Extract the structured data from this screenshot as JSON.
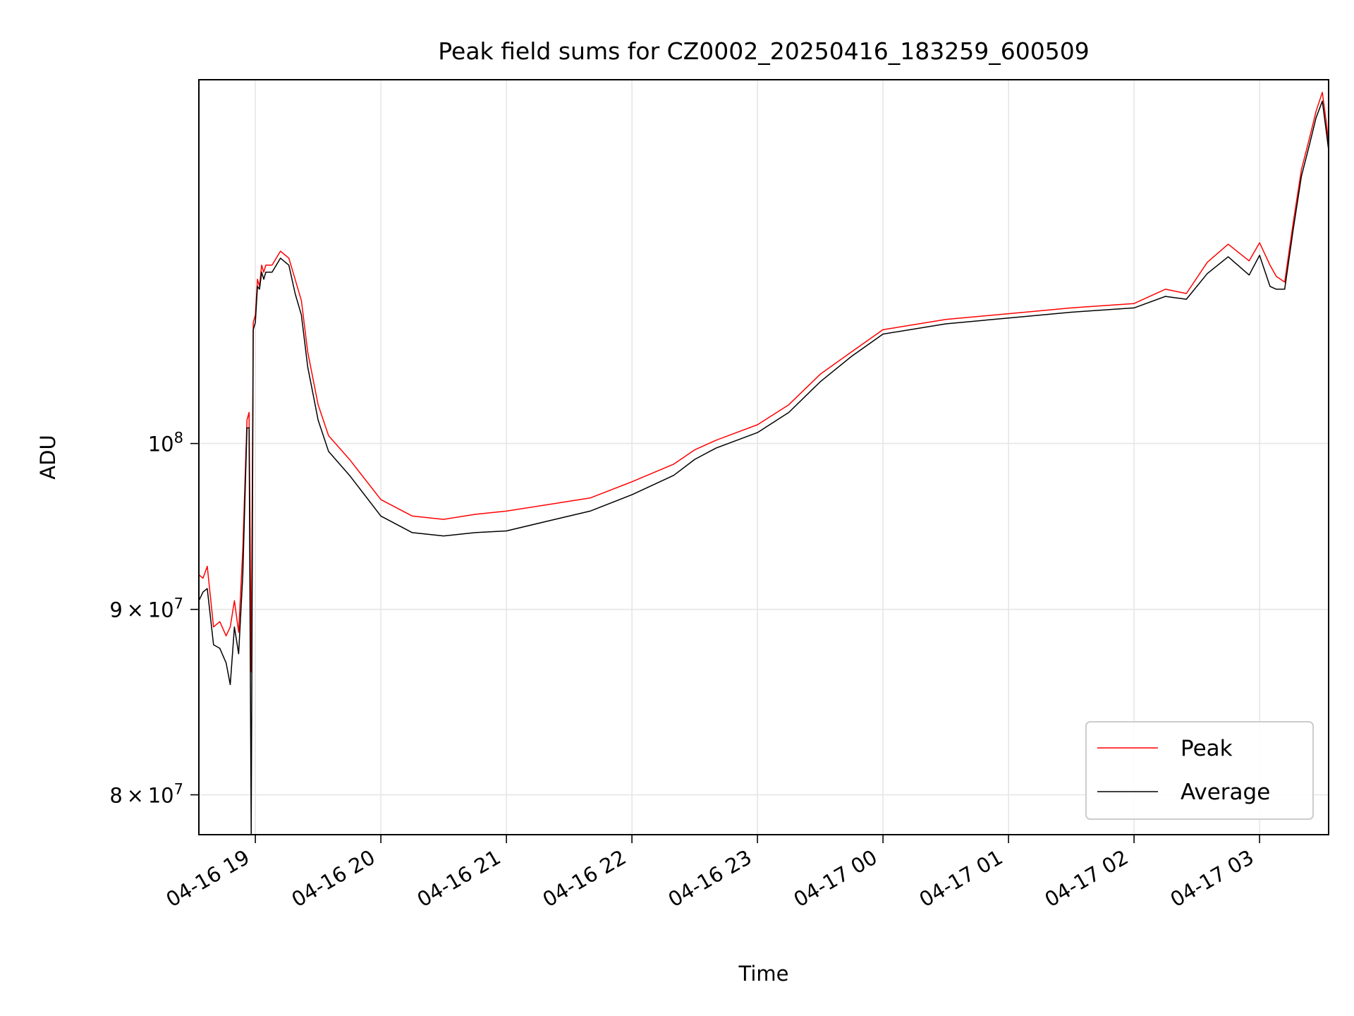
{
  "chart_data": {
    "type": "line",
    "title": "Peak field sums for CZ0002_20250416_183259_600509",
    "xlabel": "Time",
    "ylabel": "ADU",
    "x_is_time": true,
    "xlim": [
      "2025-04-16 18:33",
      "2025-04-17 03:33"
    ],
    "ylim": [
      78000000,
      126000000
    ],
    "yscale": "log",
    "grid": true,
    "legend_position": "lower-right",
    "x_ticks": [
      {
        "t": "2025-04-16 19:00",
        "label": "04-16 19"
      },
      {
        "t": "2025-04-16 20:00",
        "label": "04-16 20"
      },
      {
        "t": "2025-04-16 21:00",
        "label": "04-16 21"
      },
      {
        "t": "2025-04-16 22:00",
        "label": "04-16 22"
      },
      {
        "t": "2025-04-16 23:00",
        "label": "04-16 23"
      },
      {
        "t": "2025-04-17 00:00",
        "label": "04-17 00"
      },
      {
        "t": "2025-04-17 01:00",
        "label": "04-17 01"
      },
      {
        "t": "2025-04-17 02:00",
        "label": "04-17 02"
      },
      {
        "t": "2025-04-17 03:00",
        "label": "04-17 03"
      }
    ],
    "y_ticks": [
      {
        "value": 80000000,
        "base": "8",
        "mult": "×",
        "exp_base": "10",
        "exp": "7"
      },
      {
        "value": 90000000,
        "base": "9",
        "mult": "×",
        "exp_base": "10",
        "exp": "7"
      },
      {
        "value": 100000000,
        "base": "",
        "mult": "",
        "exp_base": "10",
        "exp": "8"
      }
    ],
    "series": [
      {
        "name": "Peak",
        "color": "#ff0000",
        "x": [
          "2025-04-16 18:33",
          "2025-04-16 18:35",
          "2025-04-16 18:37",
          "2025-04-16 18:40",
          "2025-04-16 18:43",
          "2025-04-16 18:46",
          "2025-04-16 18:48",
          "2025-04-16 18:50",
          "2025-04-16 18:52",
          "2025-04-16 18:54",
          "2025-04-16 18:55",
          "2025-04-16 18:56",
          "2025-04-16 18:57",
          "2025-04-16 18:58",
          "2025-04-16 18:59",
          "2025-04-16 19:00",
          "2025-04-16 19:01",
          "2025-04-16 19:02",
          "2025-04-16 19:03",
          "2025-04-16 19:04",
          "2025-04-16 19:05",
          "2025-04-16 19:08",
          "2025-04-16 19:12",
          "2025-04-16 19:16",
          "2025-04-16 19:19",
          "2025-04-16 19:22",
          "2025-04-16 19:25",
          "2025-04-16 19:30",
          "2025-04-16 19:35",
          "2025-04-16 19:45",
          "2025-04-16 20:00",
          "2025-04-16 20:15",
          "2025-04-16 20:30",
          "2025-04-16 20:45",
          "2025-04-16 21:00",
          "2025-04-16 21:20",
          "2025-04-16 21:40",
          "2025-04-16 22:00",
          "2025-04-16 22:20",
          "2025-04-16 22:30",
          "2025-04-16 22:40",
          "2025-04-16 22:50",
          "2025-04-16 23:00",
          "2025-04-16 23:15",
          "2025-04-16 23:30",
          "2025-04-16 23:45",
          "2025-04-17 00:00",
          "2025-04-17 00:30",
          "2025-04-17 01:00",
          "2025-04-17 01:30",
          "2025-04-17 02:00",
          "2025-04-17 02:15",
          "2025-04-17 02:25",
          "2025-04-17 02:35",
          "2025-04-17 02:45",
          "2025-04-17 02:55",
          "2025-04-17 03:00",
          "2025-04-17 03:05",
          "2025-04-17 03:08",
          "2025-04-17 03:12",
          "2025-04-17 03:16",
          "2025-04-17 03:20",
          "2025-04-17 03:24",
          "2025-04-17 03:27",
          "2025-04-17 03:30",
          "2025-04-17 03:32",
          "2025-04-17 03:33"
        ],
        "values": [
          92000000,
          91800000,
          92500000,
          89000000,
          89300000,
          88500000,
          89000000,
          90500000,
          88700000,
          93500000,
          97500000,
          101500000,
          102000000,
          86500000,
          108000000,
          108500000,
          111000000,
          110500000,
          112000000,
          111500000,
          112000000,
          112000000,
          113000000,
          112500000,
          111000000,
          109500000,
          106000000,
          102500000,
          100500000,
          99000000,
          96500000,
          95500000,
          95300000,
          95600000,
          95800000,
          96200000,
          96600000,
          97600000,
          98700000,
          99600000,
          100200000,
          100700000,
          101200000,
          102500000,
          104500000,
          106000000,
          107500000,
          108200000,
          108600000,
          109000000,
          109300000,
          110300000,
          110000000,
          112200000,
          113500000,
          112300000,
          113600000,
          112000000,
          111200000,
          110800000,
          115000000,
          119000000,
          121500000,
          123500000,
          125000000,
          122500000,
          121000000
        ]
      },
      {
        "name": "Average",
        "color": "#000000",
        "x": [
          "2025-04-16 18:33",
          "2025-04-16 18:35",
          "2025-04-16 18:37",
          "2025-04-16 18:40",
          "2025-04-16 18:43",
          "2025-04-16 18:46",
          "2025-04-16 18:48",
          "2025-04-16 18:50",
          "2025-04-16 18:52",
          "2025-04-16 18:54",
          "2025-04-16 18:55",
          "2025-04-16 18:56",
          "2025-04-16 18:57",
          "2025-04-16 18:58",
          "2025-04-16 18:59",
          "2025-04-16 19:00",
          "2025-04-16 19:01",
          "2025-04-16 19:02",
          "2025-04-16 19:03",
          "2025-04-16 19:04",
          "2025-04-16 19:05",
          "2025-04-16 19:08",
          "2025-04-16 19:12",
          "2025-04-16 19:16",
          "2025-04-16 19:19",
          "2025-04-16 19:22",
          "2025-04-16 19:25",
          "2025-04-16 19:30",
          "2025-04-16 19:35",
          "2025-04-16 19:45",
          "2025-04-16 20:00",
          "2025-04-16 20:15",
          "2025-04-16 20:30",
          "2025-04-16 20:45",
          "2025-04-16 21:00",
          "2025-04-16 21:20",
          "2025-04-16 21:40",
          "2025-04-16 22:00",
          "2025-04-16 22:20",
          "2025-04-16 22:30",
          "2025-04-16 22:40",
          "2025-04-16 22:50",
          "2025-04-16 23:00",
          "2025-04-16 23:15",
          "2025-04-16 23:30",
          "2025-04-16 23:45",
          "2025-04-17 00:00",
          "2025-04-17 00:30",
          "2025-04-17 01:00",
          "2025-04-17 01:30",
          "2025-04-17 02:00",
          "2025-04-17 02:15",
          "2025-04-17 02:25",
          "2025-04-17 02:35",
          "2025-04-17 02:45",
          "2025-04-17 02:55",
          "2025-04-17 03:00",
          "2025-04-17 03:05",
          "2025-04-17 03:08",
          "2025-04-17 03:12",
          "2025-04-17 03:16",
          "2025-04-17 03:20",
          "2025-04-17 03:24",
          "2025-04-17 03:27",
          "2025-04-17 03:30",
          "2025-04-17 03:32",
          "2025-04-17 03:33"
        ],
        "values": [
          90500000,
          91000000,
          91200000,
          88000000,
          87800000,
          87000000,
          85800000,
          89000000,
          87500000,
          92000000,
          96500000,
          101000000,
          101000000,
          78000000,
          107500000,
          108000000,
          110500000,
          110300000,
          111500000,
          111000000,
          111500000,
          111500000,
          112500000,
          112000000,
          110000000,
          108500000,
          105000000,
          101500000,
          99500000,
          98000000,
          95500000,
          94500000,
          94300000,
          94500000,
          94600000,
          95200000,
          95800000,
          96800000,
          98000000,
          99000000,
          99700000,
          100200000,
          100700000,
          102000000,
          104000000,
          105700000,
          107200000,
          107900000,
          108300000,
          108700000,
          109000000,
          109800000,
          109600000,
          111400000,
          112600000,
          111300000,
          112700000,
          110500000,
          110300000,
          110300000,
          114500000,
          118500000,
          121000000,
          123000000,
          124300000,
          121800000,
          120500000
        ]
      }
    ]
  }
}
